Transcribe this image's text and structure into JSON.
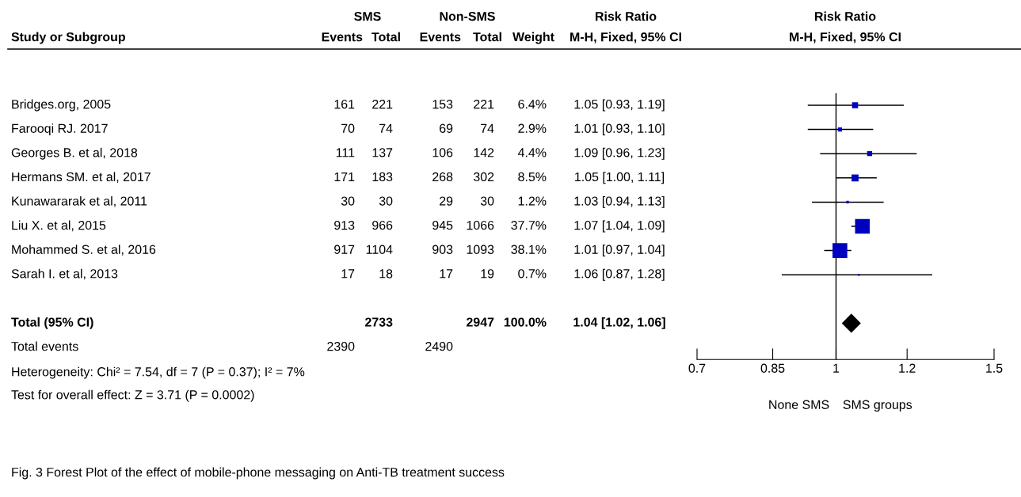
{
  "chart_data": [
    {
      "type": "other",
      "ylabel": "Study or Subgroup",
      "categories": [
        "Events",
        "Total",
        "Events",
        "Total",
        "Weight",
        "M-H, Fixed, 95% CI"
      ],
      "y_categories": [
        "Bridges.org, 2005",
        "Farooqi RJ. 2017",
        "Georges B. et al, 2018",
        "Hermans SM. et al, 2017",
        "Kunawararak et al, 2011",
        "Liu X. et al, 2015",
        "Mohammed S. et al, 2016",
        "Sarah I. et al, 2013",
        null,
        "Total (95% CI)",
        "Total events"
      ],
      "cell_labels": [
        [
          "161",
          "221",
          "153",
          "221",
          "6.4%",
          "1.05 [0.93, 1.19]"
        ],
        [
          "70",
          "74",
          "69",
          "74",
          "2.9%",
          "1.01 [0.93, 1.10]"
        ],
        [
          "111",
          "137",
          "106",
          "142",
          "4.4%",
          "1.09 [0.96, 1.23]"
        ],
        [
          "171",
          "183",
          "268",
          "302",
          "8.5%",
          "1.05 [1.00, 1.11]"
        ],
        [
          "30",
          "30",
          "29",
          "30",
          "1.2%",
          "1.03 [0.94, 1.13]"
        ],
        [
          "913",
          "966",
          "945",
          "1066",
          "37.7%",
          "1.07 [1.04, 1.09]"
        ],
        [
          "917",
          "1104",
          "903",
          "1093",
          "38.1%",
          "1.01 [0.97, 1.04]"
        ],
        [
          "17",
          "18",
          "17",
          "19",
          "0.7%",
          "1.06 [0.87, 1.28]"
        ],
        [
          null,
          null,
          null,
          null,
          null,
          null
        ],
        [
          null,
          "2733",
          null,
          "2947",
          "100.0%",
          "1.04 [1.02, 1.06]"
        ],
        [
          "2390",
          null,
          "2490",
          null,
          null,
          null
        ]
      ],
      "annotations": [
        "SMS",
        "Non-SMS",
        "Risk Ratio",
        "Heterogeneity: Chi² = 7.54, df = 7 (P = 0.37); I² = 7%",
        "Test for overall effect: Z = 3.71 (P = 0.0002)",
        "Fig. 3 Forest Plot of the effect of mobile-phone messaging on Anti-TB treatment success"
      ]
    },
    {
      "type": "scatter",
      "title": "Risk Ratio",
      "subtitle": "M-H, Fixed, 95% CI",
      "orientation": "horizontal",
      "log": "x",
      "categories": [
        null,
        null,
        null,
        null,
        null,
        null,
        null,
        null,
        null,
        null,
        null
      ],
      "series": [
        {
          "type": "bubble",
          "marker": "square",
          "color": "#0000c0",
          "values": [
            1.05,
            1.01,
            1.09,
            1.05,
            1.03,
            1.07,
            1.01,
            1.06,
            null,
            null,
            null
          ],
          "sizes": [
            0.168,
            0.076,
            0.115,
            0.223,
            0.031,
            0.99,
            1,
            0.018,
            null,
            null,
            null
          ],
          "errors": [
            [
              0.93,
              1.19
            ],
            [
              0.93,
              1.1
            ],
            [
              0.96,
              1.23
            ],
            [
              1.0,
              1.11
            ],
            [
              0.94,
              1.13
            ],
            [
              1.04,
              1.09
            ],
            [
              0.97,
              1.04
            ],
            [
              0.87,
              1.28
            ],
            null,
            null,
            null
          ]
        },
        {
          "type": "scatter",
          "marker": "diamond",
          "color": "#000000",
          "values": [
            null,
            null,
            null,
            null,
            null,
            null,
            null,
            null,
            null,
            1.04,
            null
          ],
          "errors": [
            null,
            null,
            null,
            null,
            null,
            null,
            null,
            null,
            null,
            [
              1.02,
              1.06
            ],
            null
          ]
        }
      ],
      "xlim": [
        0.7,
        1.5
      ],
      "xticks": [
        0.7,
        0.85,
        1,
        1.2,
        1.5
      ],
      "ref_lines": [
        {
          "axis": "x",
          "value": 1,
          "color": "#000000"
        }
      ],
      "annotations": [
        "None SMS",
        "SMS groups"
      ]
    }
  ]
}
